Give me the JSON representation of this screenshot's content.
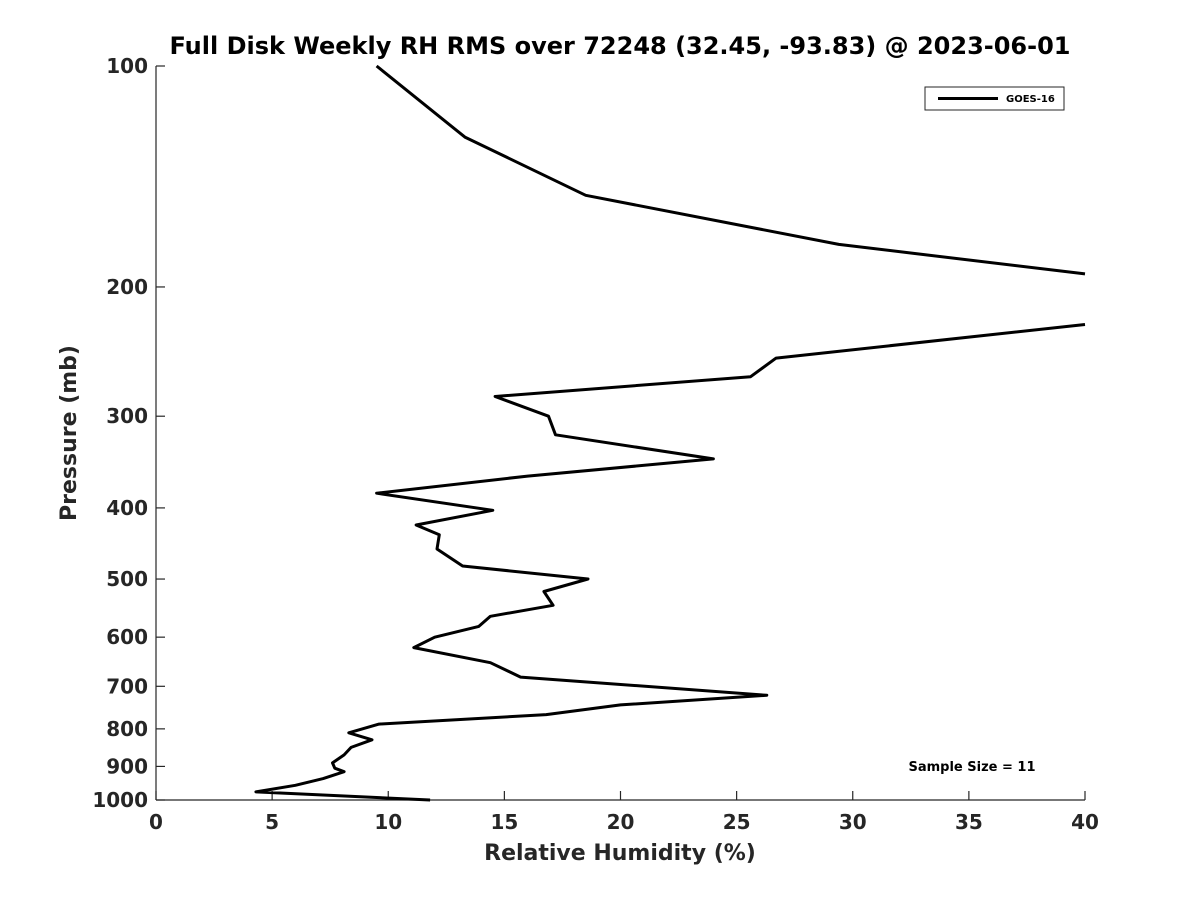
{
  "chart_data": {
    "type": "line",
    "title": "Full Disk Weekly RH RMS over 72248 (32.45, -93.83) @ 2023-06-01",
    "xlabel": "Relative Humidity (%)",
    "ylabel": "Pressure (mb)",
    "xlim": [
      0,
      40
    ],
    "ylim": [
      100,
      1000
    ],
    "y_scale": "log",
    "y_reversed": true,
    "xticks": [
      0,
      5,
      10,
      15,
      20,
      25,
      30,
      35,
      40
    ],
    "yticks": [
      100,
      200,
      300,
      400,
      500,
      600,
      700,
      800,
      900,
      1000
    ],
    "grid": false,
    "legend_position": "top-right",
    "annotation": "Sample Size = 11",
    "series": [
      {
        "name": "GOES-16",
        "color": "#000000",
        "points": [
          {
            "x": 9.5,
            "y": 100
          },
          {
            "x": 13.3,
            "y": 125
          },
          {
            "x": 18.5,
            "y": 150
          },
          {
            "x": 29.4,
            "y": 175
          },
          {
            "x": 40.0,
            "y": 192
          },
          {
            "x": null,
            "y": null
          },
          {
            "x": 40.0,
            "y": 225
          },
          {
            "x": 26.7,
            "y": 250
          },
          {
            "x": 25.6,
            "y": 265
          },
          {
            "x": 14.6,
            "y": 282
          },
          {
            "x": 16.9,
            "y": 300
          },
          {
            "x": 17.2,
            "y": 318
          },
          {
            "x": 24.0,
            "y": 343
          },
          {
            "x": 16.0,
            "y": 362
          },
          {
            "x": 9.5,
            "y": 382
          },
          {
            "x": 14.5,
            "y": 403
          },
          {
            "x": 11.2,
            "y": 422
          },
          {
            "x": 12.2,
            "y": 435
          },
          {
            "x": 12.1,
            "y": 455
          },
          {
            "x": 13.2,
            "y": 480
          },
          {
            "x": 18.6,
            "y": 500
          },
          {
            "x": 16.7,
            "y": 520
          },
          {
            "x": 17.1,
            "y": 543
          },
          {
            "x": 14.4,
            "y": 562
          },
          {
            "x": 13.9,
            "y": 580
          },
          {
            "x": 12.0,
            "y": 600
          },
          {
            "x": 11.1,
            "y": 620
          },
          {
            "x": 14.4,
            "y": 650
          },
          {
            "x": 15.7,
            "y": 680
          },
          {
            "x": 26.3,
            "y": 720
          },
          {
            "x": 20.0,
            "y": 742
          },
          {
            "x": 16.8,
            "y": 765
          },
          {
            "x": 9.6,
            "y": 788
          },
          {
            "x": 8.3,
            "y": 810
          },
          {
            "x": 9.3,
            "y": 828
          },
          {
            "x": 8.4,
            "y": 848
          },
          {
            "x": 8.1,
            "y": 868
          },
          {
            "x": 7.6,
            "y": 890
          },
          {
            "x": 7.7,
            "y": 905
          },
          {
            "x": 8.1,
            "y": 915
          },
          {
            "x": 7.2,
            "y": 935
          },
          {
            "x": 6.0,
            "y": 955
          },
          {
            "x": 4.3,
            "y": 975
          },
          {
            "x": 11.8,
            "y": 1000
          }
        ]
      }
    ]
  }
}
